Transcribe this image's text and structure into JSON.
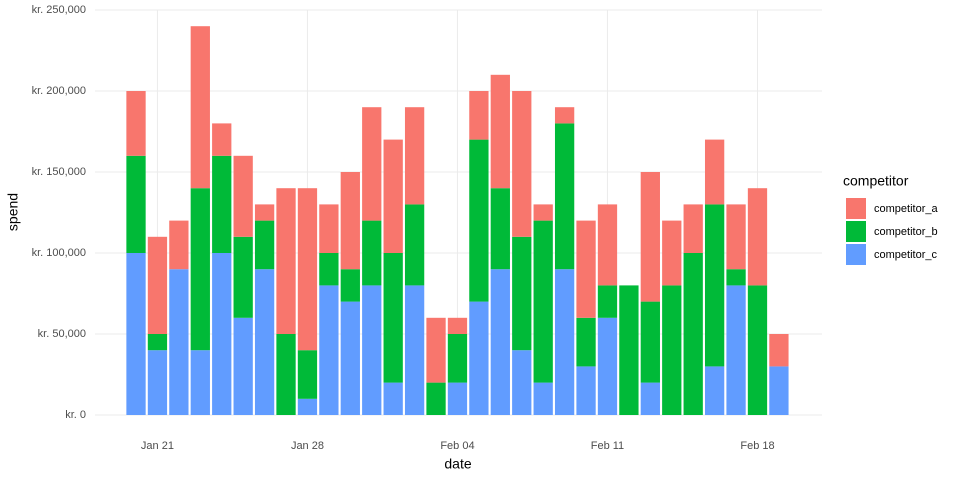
{
  "chart_data": {
    "type": "stacked_bar",
    "x_label": "date",
    "y_label": "spend",
    "legend_title": "competitor",
    "legend_position": "right",
    "grid": true,
    "categories": [
      null,
      "Jan 21",
      null,
      null,
      null,
      null,
      null,
      null,
      "Jan 28",
      null,
      null,
      null,
      null,
      null,
      null,
      "Feb 04",
      null,
      null,
      null,
      null,
      null,
      null,
      "Feb 11",
      null,
      null,
      null,
      null,
      null,
      null,
      "Feb 18",
      null
    ],
    "series": [
      {
        "name": "competitor_a",
        "color": "#F8766D",
        "values": [
          40000,
          60000,
          30000,
          100000,
          20000,
          50000,
          10000,
          90000,
          100000,
          30000,
          60000,
          70000,
          70000,
          60000,
          40000,
          10000,
          30000,
          70000,
          90000,
          10000,
          10000,
          60000,
          50000,
          0,
          80000,
          40000,
          30000,
          40000,
          40000,
          60000,
          20000
        ]
      },
      {
        "name": "competitor_b",
        "color": "#00BA38",
        "values": [
          60000,
          10000,
          0,
          100000,
          60000,
          50000,
          30000,
          50000,
          30000,
          20000,
          20000,
          40000,
          80000,
          50000,
          20000,
          30000,
          100000,
          50000,
          70000,
          100000,
          90000,
          30000,
          20000,
          80000,
          50000,
          80000,
          100000,
          100000,
          10000,
          80000,
          0
        ]
      },
      {
        "name": "competitor_c",
        "color": "#619CFF",
        "values": [
          100000,
          40000,
          90000,
          40000,
          100000,
          60000,
          90000,
          0,
          10000,
          80000,
          70000,
          80000,
          20000,
          80000,
          0,
          20000,
          70000,
          90000,
          40000,
          20000,
          90000,
          30000,
          60000,
          0,
          20000,
          0,
          0,
          30000,
          80000,
          0,
          30000
        ]
      }
    ],
    "ylim": [
      0,
      250000
    ],
    "yticks": [
      {
        "value": 0,
        "label": "kr. 0"
      },
      {
        "value": 50000,
        "label": "kr. 50,000"
      },
      {
        "value": 100000,
        "label": "kr. 100,000"
      },
      {
        "value": 150000,
        "label": "kr. 150,000"
      },
      {
        "value": 200000,
        "label": "kr. 200,000"
      },
      {
        "value": 250000,
        "label": "kr. 250,000"
      }
    ]
  }
}
